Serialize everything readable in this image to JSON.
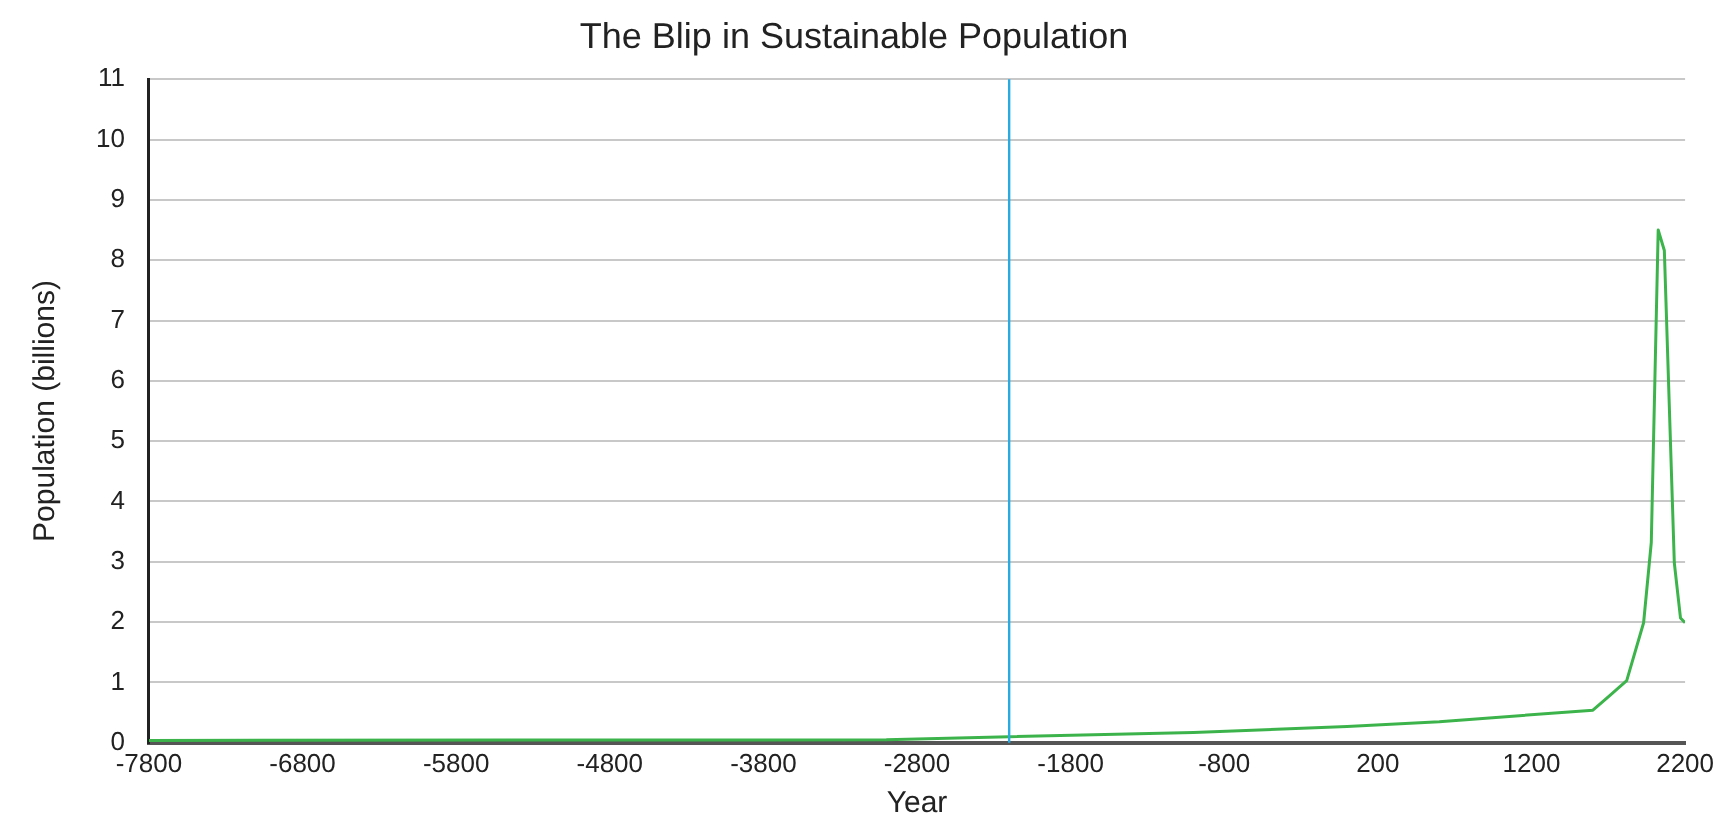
{
  "chart_data": {
    "type": "line",
    "title": "The Blip in Sustainable Population",
    "xlabel": "Year",
    "ylabel": "Population (billions)",
    "x": [
      -7800,
      -3000,
      -2200,
      -1000,
      0,
      600,
      1600,
      1700,
      1820,
      1930,
      1980,
      2025,
      2065,
      2130,
      2170,
      2200
    ],
    "series": [
      {
        "color": "#3cb44b",
        "values": [
          0.04,
          0.05,
          0.1,
          0.17,
          0.27,
          0.35,
          0.54,
          0.76,
          1.03,
          1.99,
          3.32,
          8.5,
          8.16,
          2.98,
          2.07,
          1.99
        ]
      }
    ],
    "xlim": [
      -7800,
      2200
    ],
    "xticks": [
      -7800,
      -6800,
      -5800,
      -4800,
      -3800,
      -2800,
      -1800,
      -800,
      200,
      1200,
      2200
    ],
    "ylim": [
      0,
      11
    ],
    "yticks": [
      0,
      1,
      2,
      3,
      4,
      5,
      6,
      7,
      8,
      9,
      10,
      11
    ],
    "ref_lines": [
      {
        "axis": "x",
        "value": -2200,
        "color": "#29abe2"
      }
    ],
    "grid": "y",
    "legend": false,
    "marker": "none",
    "line_style": "solid"
  }
}
